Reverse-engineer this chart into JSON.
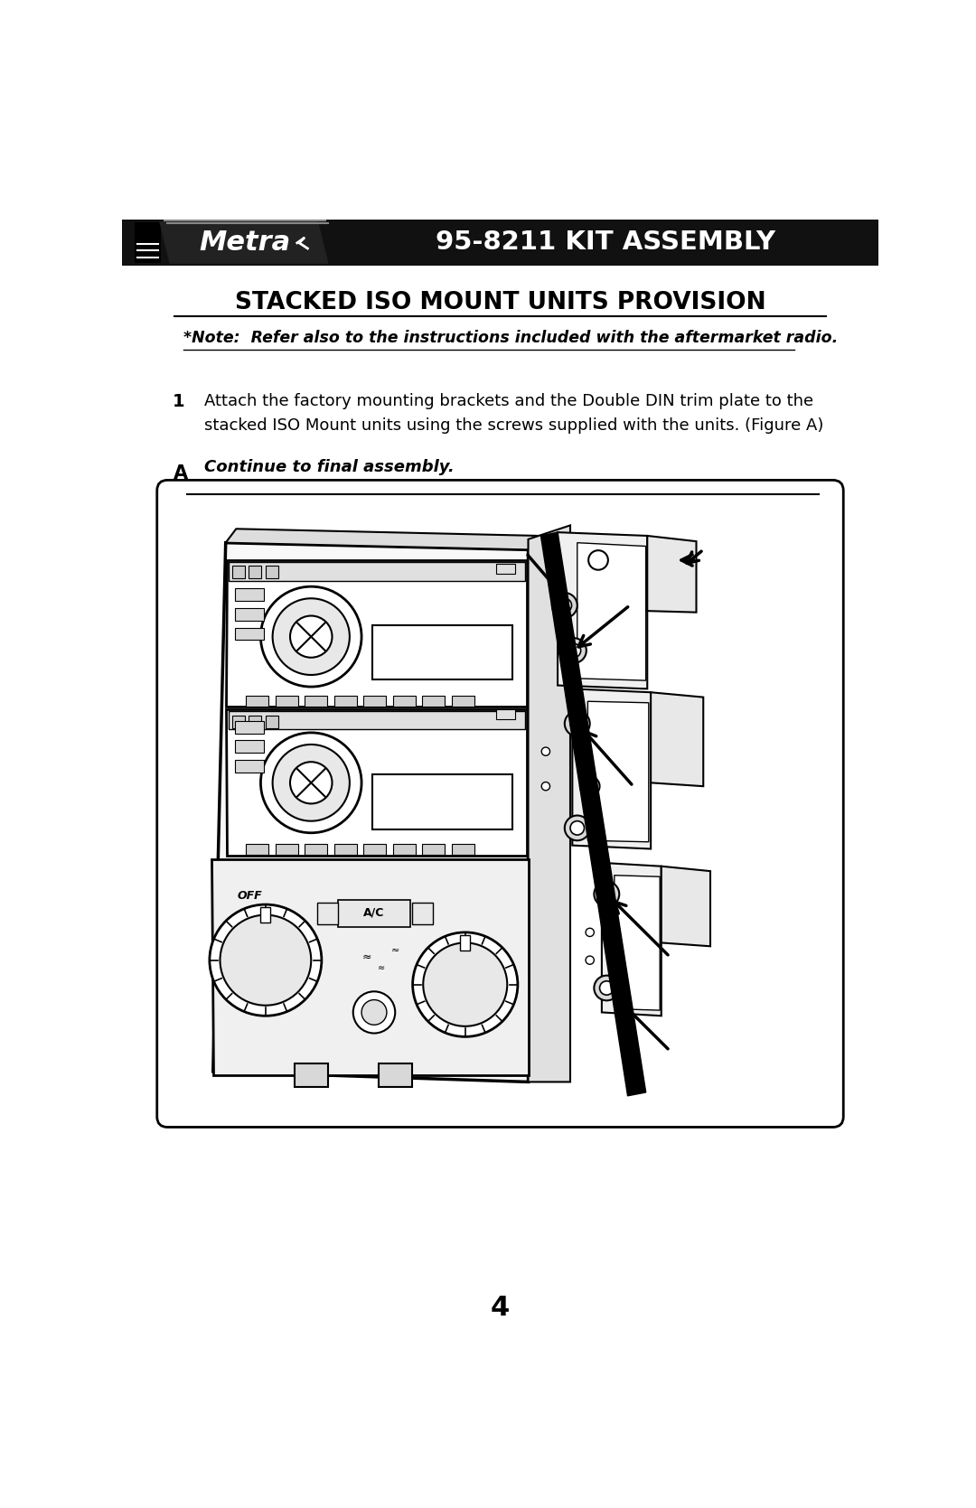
{
  "page_width": 10.8,
  "page_height": 16.69,
  "dpi": 100,
  "bg_color": "#ffffff",
  "header_bg": "#111111",
  "header_text": "95-8211 KIT ASSEMBLY",
  "header_text_color": "#ffffff",
  "section_title": "STACKED ISO MOUNT UNITS PROVISION",
  "note_text": "*Note:  Refer also to the instructions included with the aftermarket radio.",
  "step1_num": "1",
  "step1_line1": "Attach the factory mounting brackets and the Double DIN trim plate to the",
  "step1_line2": "stacked ISO Mount units using the screws supplied with the units. (Figure A)",
  "continue_text": "Continue to final assembly.",
  "figure_label": "A",
  "page_number": "4",
  "font_color": "#000000"
}
